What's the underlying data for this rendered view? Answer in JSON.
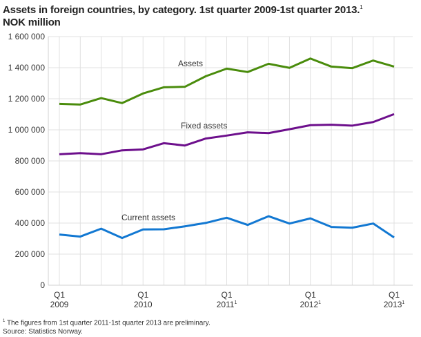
{
  "chart_data": {
    "type": "line",
    "title": "Assets in foreign countries, by category. 1st quarter 2009-1st quarter 2013.",
    "title_footnote": "1",
    "subtitle": "NOK million",
    "x": [
      "2009Q1",
      "2009Q2",
      "2009Q3",
      "2009Q4",
      "2010Q1",
      "2010Q2",
      "2010Q3",
      "2010Q4",
      "2011Q1",
      "2011Q2",
      "2011Q3",
      "2011Q4",
      "2012Q1",
      "2012Q2",
      "2012Q3",
      "2012Q4",
      "2013Q1"
    ],
    "x_tick_labels": [
      {
        "index": 0,
        "line1": "Q1",
        "line2": "2009",
        "sup": ""
      },
      {
        "index": 4,
        "line1": "Q1",
        "line2": "2010",
        "sup": ""
      },
      {
        "index": 8,
        "line1": "Q1",
        "line2": "2011",
        "sup": "1"
      },
      {
        "index": 12,
        "line1": "Q1",
        "line2": "2012",
        "sup": "1"
      },
      {
        "index": 16,
        "line1": "Q1",
        "line2": "2013",
        "sup": "1"
      }
    ],
    "ylim": [
      0,
      1600000
    ],
    "y_ticks": [
      0,
      200000,
      400000,
      600000,
      800000,
      1000000,
      1200000,
      1400000,
      1600000
    ],
    "y_tick_labels": [
      "0",
      "200 000",
      "400 000",
      "600 000",
      "800 000",
      "1 000 000",
      "1 200 000",
      "1 400 000",
      "1 600 000"
    ],
    "grid": true,
    "legend": "inline labels",
    "series": [
      {
        "name": "Assets",
        "color": "#4a8c0c",
        "values": [
          1167000,
          1163000,
          1204000,
          1172000,
          1234000,
          1274000,
          1277000,
          1345000,
          1394000,
          1372000,
          1425000,
          1399000,
          1459000,
          1407000,
          1397000,
          1446000,
          1407000
        ]
      },
      {
        "name": "Fixed assets",
        "color": "#6d0f8c",
        "values": [
          843000,
          850000,
          843000,
          868000,
          874000,
          914000,
          899000,
          944000,
          963000,
          984000,
          979000,
          1004000,
          1030000,
          1033000,
          1027000,
          1050000,
          1101000
        ]
      },
      {
        "name": "Current assets",
        "color": "#1278d2",
        "values": [
          326000,
          313000,
          364000,
          304000,
          359000,
          360000,
          379000,
          401000,
          434000,
          388000,
          444000,
          397000,
          430000,
          375000,
          370000,
          397000,
          307000
        ]
      }
    ]
  },
  "notes": {
    "footnote_mark": "1",
    "footnote": "The figures from 1st quarter 2011-1st quarter 2013 are preliminary.",
    "source": "Source: Statistics Norway."
  }
}
